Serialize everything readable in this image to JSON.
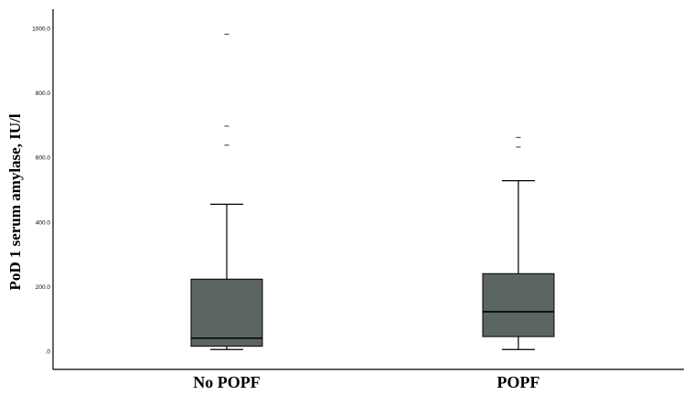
{
  "chart_data": {
    "type": "boxplot",
    "ylabel": "PoD 1 serum amylase, IU/l",
    "xlabel": "",
    "ylim": [
      0,
      1000
    ],
    "yticks": [
      {
        "value": 0,
        "label": ".0"
      },
      {
        "value": 200,
        "label": "200.0"
      },
      {
        "value": 400,
        "label": "400.0"
      },
      {
        "value": 600,
        "label": "600.0"
      },
      {
        "value": 800,
        "label": "800.0"
      },
      {
        "value": 1000,
        "label": "1000.0"
      }
    ],
    "grid": false,
    "box_color": "#5c6661",
    "line_color": "#000000",
    "categories": [
      "No POPF",
      "POPF"
    ],
    "boxes": [
      {
        "category": "No POPF",
        "whisker_low": 5,
        "q1": 15,
        "median": 40,
        "q3": 223,
        "whisker_high": 455,
        "outliers": [
          638,
          697,
          982
        ]
      },
      {
        "category": "POPF",
        "whisker_low": 5,
        "q1": 45,
        "median": 122,
        "q3": 240,
        "whisker_high": 528,
        "outliers": [
          632,
          662
        ]
      }
    ]
  }
}
